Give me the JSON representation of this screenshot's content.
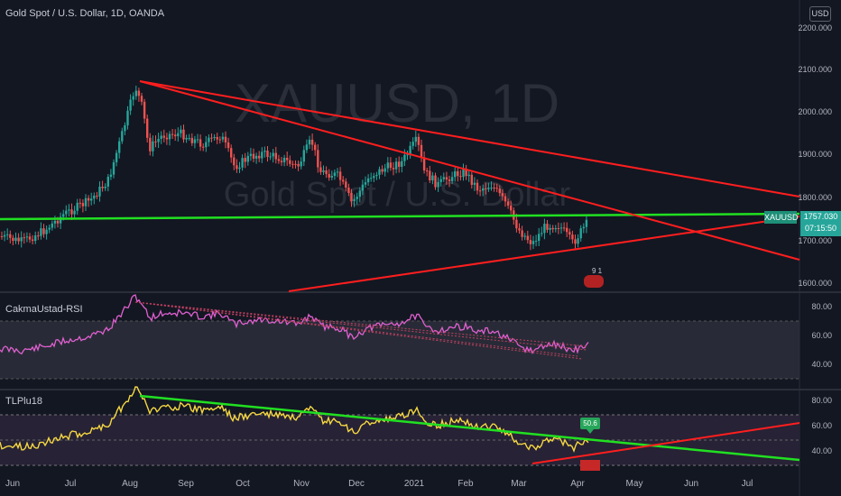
{
  "header": {
    "title": "Gold Spot / U.S. Dollar, 1D, OANDA",
    "currency": "USD",
    "watermark_symbol": "XAUUSD, 1D",
    "watermark_name": "Gold Spot / U.S. Dollar"
  },
  "price_axis": [
    "2200.000",
    "2100.000",
    "2000.000",
    "1900.000",
    "1800.000",
    "1700.000",
    "1600.000"
  ],
  "price_label": {
    "symbol": "XAUUSD",
    "price": "1757.030",
    "countdown": "07:15:50"
  },
  "rsi_pane": {
    "label": "CakmaUstad-RSI",
    "axis": [
      "80.00",
      "60.00",
      "40.00"
    ]
  },
  "tlp_pane": {
    "label": "TLPlu18",
    "axis": [
      "80.00",
      "60.00",
      "40.00"
    ],
    "badge": "50.6"
  },
  "events": {
    "label": "9 1"
  },
  "time_axis": [
    "Jun",
    "Jul",
    "Aug",
    "Sep",
    "Oct",
    "Nov",
    "Dec",
    "2021",
    "Feb",
    "Mar",
    "Apr",
    "May",
    "Jun",
    "Jul"
  ],
  "colors": {
    "background": "#131722",
    "up": "#26a69a",
    "down": "#ef5350",
    "trendline": "#ff1e1e",
    "level": "#21e021",
    "rsi": "#e060d0",
    "tlp": "#f5d742"
  }
}
